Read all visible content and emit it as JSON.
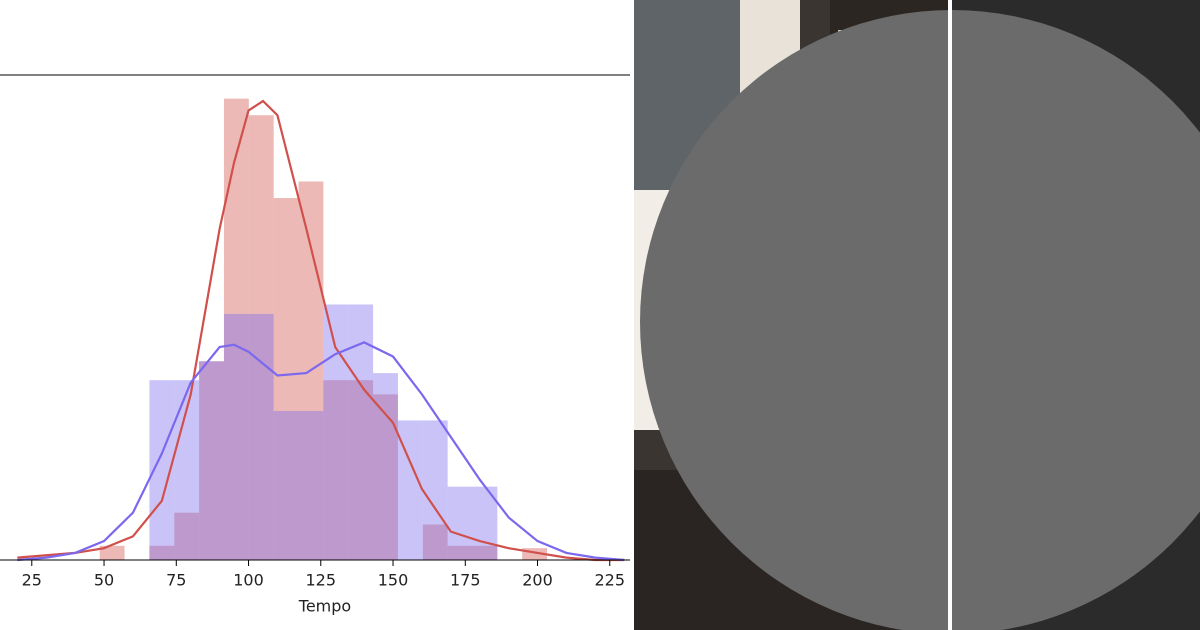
{
  "chart_data": {
    "type": "histogram",
    "x_label": "Tempo",
    "xlim": [
      14,
      232
    ],
    "ylim": [
      0,
      0.0205
    ],
    "xticks": [
      25,
      50,
      75,
      100,
      125,
      150,
      175,
      200,
      225
    ],
    "bins": [
      48.5,
      57.1,
      65.7,
      74.3,
      82.9,
      91.5,
      100.1,
      108.7,
      117.3,
      125.9,
      134.5,
      143.1,
      151.7,
      160.3,
      168.9,
      177.5,
      186.1,
      194.7,
      203.3
    ],
    "kde_x": [
      20,
      30,
      40,
      50,
      60,
      70,
      80,
      90,
      95,
      100,
      105,
      110,
      120,
      130,
      140,
      150,
      160,
      170,
      180,
      190,
      200,
      210,
      220,
      230
    ],
    "series": [
      {
        "color": "#d0504c",
        "bar_opacity": 0.4,
        "values": [
          0.0006,
          0,
          0.0006,
          0.002,
          0.0084,
          0.0195,
          0.0188,
          0.0153,
          0.016,
          0.0076,
          0.0076,
          0.007,
          0,
          0.0015,
          0.0006,
          0.0006,
          0,
          0.0005
        ],
        "kde": [
          0.0001,
          0.0002,
          0.0003,
          0.0005,
          0.001,
          0.0025,
          0.007,
          0.014,
          0.0168,
          0.019,
          0.0194,
          0.0188,
          0.014,
          0.009,
          0.0072,
          0.0058,
          0.003,
          0.0012,
          0.0008,
          0.0005,
          0.0003,
          0.0001,
          0,
          0
        ]
      },
      {
        "color": "#7b68ee",
        "bar_opacity": 0.4,
        "values": [
          0,
          0,
          0.0076,
          0.0076,
          0.0084,
          0.0104,
          0.0104,
          0.0063,
          0.0063,
          0.0108,
          0.0108,
          0.0079,
          0.0059,
          0.0059,
          0.0031,
          0.0031,
          0,
          0
        ],
        "kde": [
          0,
          0.0001,
          0.0003,
          0.0008,
          0.002,
          0.0045,
          0.0075,
          0.009,
          0.0091,
          0.0088,
          0.0083,
          0.0078,
          0.0079,
          0.0087,
          0.0092,
          0.0086,
          0.007,
          0.0052,
          0.0034,
          0.0018,
          0.0008,
          0.0003,
          0.0001,
          0
        ]
      }
    ]
  }
}
